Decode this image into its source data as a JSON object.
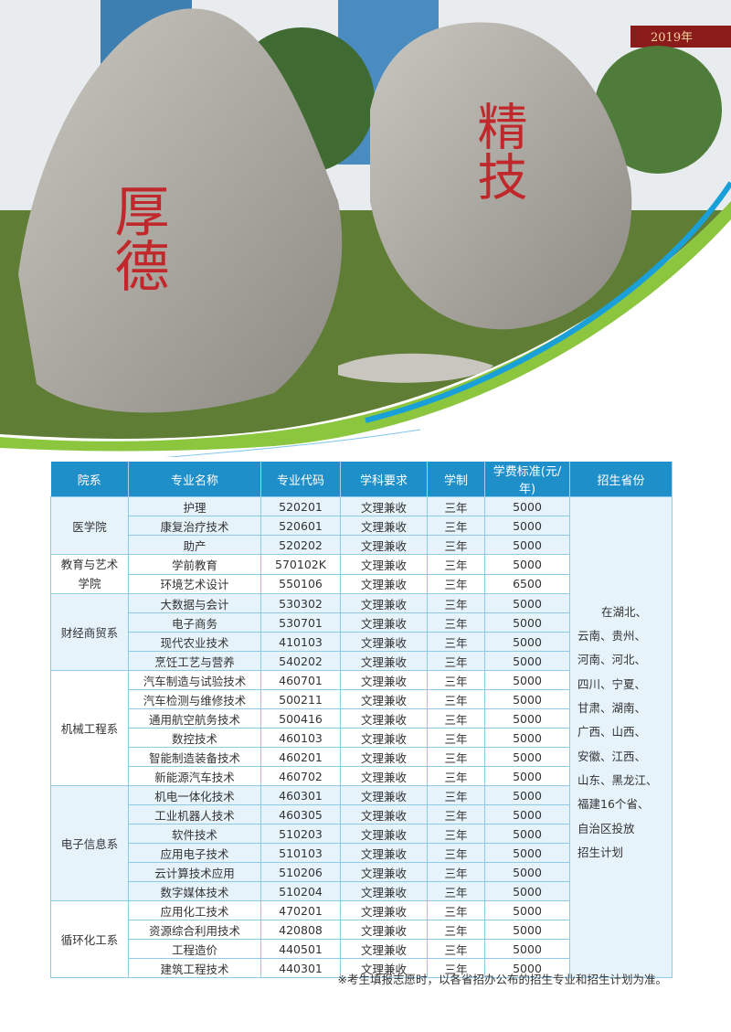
{
  "photo": {
    "stone_left_text": "厚德",
    "stone_right_text": "精技",
    "banner_text": "2019年"
  },
  "colors": {
    "header": "#1f8fc9",
    "row_alt": "#e6f3fb",
    "border": "#8fcbe9",
    "swoosh_green": "#8cc63f",
    "swoosh_blue": "#1aa0d8"
  },
  "table": {
    "headers": [
      "院系",
      "专业名称",
      "专业代码",
      "学科要求",
      "学制",
      "学费标准(元/年)",
      "招生省份"
    ],
    "provinces": [
      "在湖北、",
      "云南、贵州、",
      "河南、河北、",
      "四川、宁夏、",
      "甘肃、湖南、",
      "广西、山西、",
      "安徽、江西、",
      "山东、黑龙江、",
      "福建16个省、",
      "自治区投放",
      "招生计划"
    ],
    "groups": [
      {
        "dept": "医学院",
        "rows": [
          [
            "护理",
            "520201",
            "文理兼收",
            "三年",
            "5000"
          ],
          [
            "康复治疗技术",
            "520601",
            "文理兼收",
            "三年",
            "5000"
          ],
          [
            "助产",
            "520202",
            "文理兼收",
            "三年",
            "5000"
          ]
        ]
      },
      {
        "dept": "教育与艺术学院",
        "rows": [
          [
            "学前教育",
            "570102K",
            "文理兼收",
            "三年",
            "5000"
          ],
          [
            "环境艺术设计",
            "550106",
            "文理兼收",
            "三年",
            "6500"
          ]
        ]
      },
      {
        "dept": "财经商贸系",
        "rows": [
          [
            "大数据与会计",
            "530302",
            "文理兼收",
            "三年",
            "5000"
          ],
          [
            "电子商务",
            "530701",
            "文理兼收",
            "三年",
            "5000"
          ],
          [
            "现代农业技术",
            "410103",
            "文理兼收",
            "三年",
            "5000"
          ],
          [
            "烹饪工艺与营养",
            "540202",
            "文理兼收",
            "三年",
            "5000"
          ]
        ]
      },
      {
        "dept": "机械工程系",
        "rows": [
          [
            "汽车制造与试验技术",
            "460701",
            "文理兼收",
            "三年",
            "5000"
          ],
          [
            "汽车检测与维修技术",
            "500211",
            "文理兼收",
            "三年",
            "5000"
          ],
          [
            "通用航空航务技术",
            "500416",
            "文理兼收",
            "三年",
            "5000"
          ],
          [
            "数控技术",
            "460103",
            "文理兼收",
            "三年",
            "5000"
          ],
          [
            "智能制造装备技术",
            "460201",
            "文理兼收",
            "三年",
            "5000"
          ],
          [
            "新能源汽车技术",
            "460702",
            "文理兼收",
            "三年",
            "5000"
          ]
        ]
      },
      {
        "dept": "电子信息系",
        "rows": [
          [
            "机电一体化技术",
            "460301",
            "文理兼收",
            "三年",
            "5000"
          ],
          [
            "工业机器人技术",
            "460305",
            "文理兼收",
            "三年",
            "5000"
          ],
          [
            "软件技术",
            "510203",
            "文理兼收",
            "三年",
            "5000"
          ],
          [
            "应用电子技术",
            "510103",
            "文理兼收",
            "三年",
            "5000"
          ],
          [
            "云计算技术应用",
            "510206",
            "文理兼收",
            "三年",
            "5000"
          ],
          [
            "数字媒体技术",
            "510204",
            "文理兼收",
            "三年",
            "5000"
          ]
        ]
      },
      {
        "dept": "循环化工系",
        "rows": [
          [
            "应用化工技术",
            "470201",
            "文理兼收",
            "三年",
            "5000"
          ],
          [
            "资源综合利用技术",
            "420808",
            "文理兼收",
            "三年",
            "5000"
          ],
          [
            "工程造价",
            "440501",
            "文理兼收",
            "三年",
            "5000"
          ],
          [
            "建筑工程技术",
            "440301",
            "文理兼收",
            "三年",
            "5000"
          ]
        ]
      }
    ]
  },
  "note": "※考生填报志愿时，以各省招办公布的招生专业和招生计划为准。"
}
